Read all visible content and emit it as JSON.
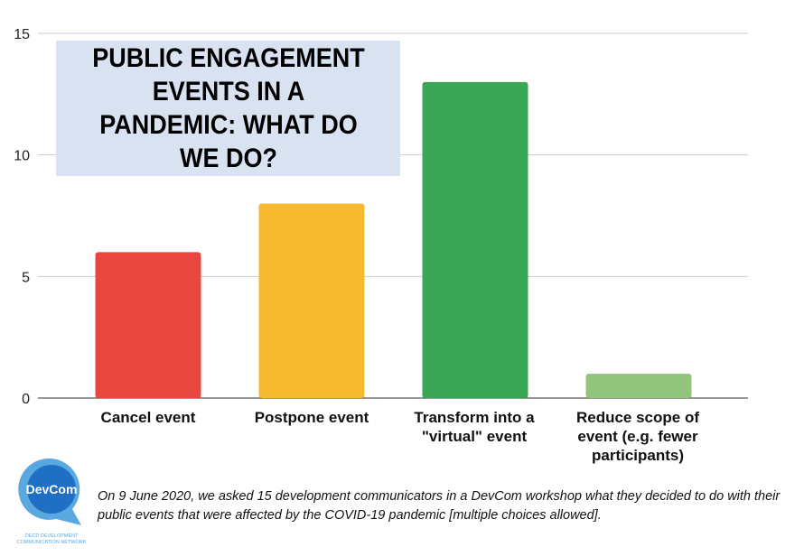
{
  "chart_data": {
    "type": "bar",
    "title": "PUBLIC ENGAGEMENT EVENTS IN A PANDEMIC: WHAT DO WE DO?",
    "categories": [
      "Cancel event",
      "Postpone event",
      "Transform into a \"virtual\" event",
      "Reduce scope of event (e.g. fewer participants)"
    ],
    "values": [
      6,
      8,
      13,
      1
    ],
    "colors": [
      "#e8473f",
      "#f7b92f",
      "#3aa757",
      "#93c47d"
    ],
    "ylim": [
      0,
      15
    ],
    "yticks": [
      0,
      5,
      10,
      15
    ],
    "grid": true,
    "xlabel": "",
    "ylabel": ""
  },
  "caption": "On 9 June 2020, we asked 15 development communicators in a DevCom workshop what they decided to do with their public events that were affected by the COVID-19 pandemic [multiple choices allowed].",
  "logo": {
    "name": "DevCom",
    "subtitle": "OECD DEVELOPMENT COMMUNICATION NETWORK"
  }
}
